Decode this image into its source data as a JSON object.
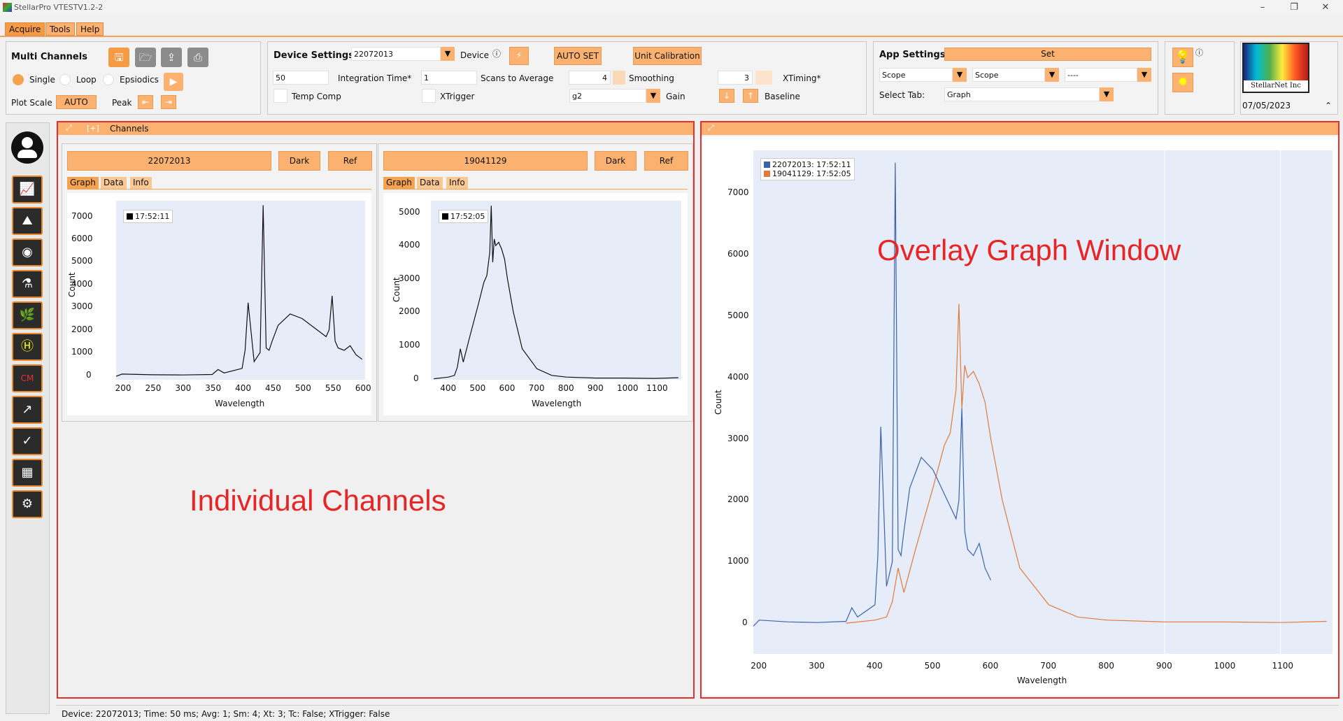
{
  "window": {
    "title": "StellarPro VTESTV1.2-2"
  },
  "menu": [
    "Acquire",
    "Tools",
    "Help"
  ],
  "multi_channels": {
    "title": "Multi Channels",
    "modes": [
      "Single",
      "Loop",
      "Epsiodics"
    ],
    "plot_scale_label": "Plot Scale",
    "plot_scale_value": "AUTO",
    "peak_label": "Peak"
  },
  "device_settings": {
    "title": "Device Settings",
    "device_id": "22072013",
    "device_label": "Device",
    "auto_set": "AUTO SET",
    "unit_calibration": "Unit Calibration",
    "integration_time_value": "50",
    "integration_time_label": "Integration Time*",
    "scans_value": "1",
    "scans_label": "Scans to Average",
    "smoothing_value": "4",
    "smoothing_label": "Smoothing",
    "xtiming_value": "3",
    "xtiming_label": "XTiming*",
    "temp_comp_label": "Temp Comp",
    "xtrigger_label": "XTrigger",
    "gain_value": "g2",
    "gain_label": "Gain",
    "baseline_label": "Baseline"
  },
  "app_settings": {
    "title": "App Settings",
    "set_label": "Set",
    "dd1": "Scope",
    "dd2": "Scope",
    "dd3": "----",
    "select_tab_label": "Select Tab:",
    "select_tab_value": "Graph"
  },
  "logo": {
    "text": "StellarNet Inc",
    "date": "07/05/2023"
  },
  "channels_panel": {
    "expand": "[+]",
    "title": "Channels"
  },
  "channels": [
    {
      "id": "22072013",
      "dark": "Dark",
      "ref": "Ref",
      "tabs": [
        "Graph",
        "Data",
        "Info"
      ],
      "legend": "17:52:11",
      "xlabel": "Wavelength",
      "ylabel": "Count",
      "xticks": [
        "200",
        "250",
        "300",
        "350",
        "400",
        "450",
        "500",
        "550",
        "600"
      ],
      "yticks": [
        "0",
        "1000",
        "2000",
        "3000",
        "4000",
        "5000",
        "6000",
        "7000"
      ]
    },
    {
      "id": "19041129",
      "dark": "Dark",
      "ref": "Ref",
      "tabs": [
        "Graph",
        "Data",
        "Info"
      ],
      "legend": "17:52:05",
      "xlabel": "Wavelength",
      "ylabel": "Count",
      "xticks": [
        "400",
        "500",
        "600",
        "700",
        "800",
        "900",
        "1000",
        "1100"
      ],
      "yticks": [
        "0",
        "1000",
        "2000",
        "3000",
        "4000",
        "5000"
      ]
    }
  ],
  "overlay": {
    "legend": [
      "22072013: 17:52:11",
      "19041129: 17:52:05"
    ],
    "xlabel": "Wavelength",
    "ylabel": "Count",
    "xticks": [
      "200",
      "300",
      "400",
      "500",
      "600",
      "700",
      "800",
      "900",
      "1000",
      "1100"
    ],
    "yticks": [
      "0",
      "1000",
      "2000",
      "3000",
      "4000",
      "5000",
      "6000",
      "7000"
    ]
  },
  "annotations": {
    "left": "Individual Channels",
    "right": "Overlay Graph Window"
  },
  "status": "Device: 22072013; Time: 50 ms; Avg: 1; Sm: 4; Xt: 3; Tc: False; XTrigger: False",
  "colors": {
    "accent": "#fbb16f",
    "series1": "#3b64a8",
    "series2": "#e07b3c",
    "annotation": "#e53030"
  },
  "chart_data": [
    {
      "type": "line",
      "series": [
        {
          "name": "17:52:11",
          "x": [
            190,
            200,
            250,
            300,
            350,
            360,
            370,
            400,
            405,
            410,
            420,
            430,
            435,
            440,
            445,
            450,
            460,
            480,
            500,
            520,
            540,
            545,
            550,
            555,
            560,
            570,
            580,
            590,
            600
          ],
          "y": [
            -50,
            50,
            20,
            10,
            30,
            250,
            100,
            300,
            1100,
            3200,
            600,
            1000,
            7500,
            1200,
            1100,
            1500,
            2200,
            2700,
            2500,
            2100,
            1700,
            2000,
            3500,
            1500,
            1200,
            1100,
            1300,
            900,
            700
          ]
        }
      ],
      "ylim": [
        0,
        7500
      ]
    },
    {
      "type": "line",
      "series": [
        {
          "name": "17:52:05",
          "x": [
            350,
            400,
            420,
            430,
            440,
            450,
            470,
            500,
            520,
            530,
            540,
            545,
            550,
            555,
            560,
            570,
            580,
            590,
            600,
            620,
            650,
            700,
            750,
            800,
            900,
            1000,
            1100,
            1180
          ],
          "y": [
            0,
            50,
            100,
            350,
            900,
            500,
            1200,
            2200,
            2900,
            3100,
            3800,
            5200,
            3500,
            4200,
            4000,
            4100,
            3900,
            3600,
            3000,
            2000,
            900,
            300,
            100,
            50,
            20,
            20,
            10,
            30
          ]
        }
      ],
      "ylim": [
        0,
        5300
      ]
    },
    {
      "type": "line",
      "series": [
        {
          "name": "22072013: 17:52:11",
          "x": [
            190,
            200,
            250,
            300,
            350,
            360,
            370,
            400,
            405,
            410,
            420,
            430,
            435,
            440,
            445,
            450,
            460,
            480,
            500,
            520,
            540,
            545,
            550,
            555,
            560,
            570,
            580,
            590,
            600
          ],
          "y": [
            -50,
            50,
            20,
            10,
            30,
            250,
            100,
            300,
            1100,
            3200,
            600,
            1000,
            7500,
            1200,
            1100,
            1500,
            2200,
            2700,
            2500,
            2100,
            1700,
            2000,
            3500,
            1500,
            1200,
            1100,
            1300,
            900,
            700
          ]
        },
        {
          "name": "19041129: 17:52:05",
          "x": [
            350,
            400,
            420,
            430,
            440,
            450,
            470,
            500,
            520,
            530,
            540,
            545,
            550,
            555,
            560,
            570,
            580,
            590,
            600,
            620,
            650,
            700,
            750,
            800,
            900,
            1000,
            1100,
            1180
          ],
          "y": [
            0,
            50,
            100,
            350,
            900,
            500,
            1200,
            2200,
            2900,
            3100,
            3800,
            5200,
            3500,
            4200,
            4000,
            4100,
            3900,
            3600,
            3000,
            2000,
            900,
            300,
            100,
            50,
            20,
            20,
            10,
            30
          ]
        }
      ],
      "ylim": [
        -200,
        7500
      ]
    }
  ]
}
